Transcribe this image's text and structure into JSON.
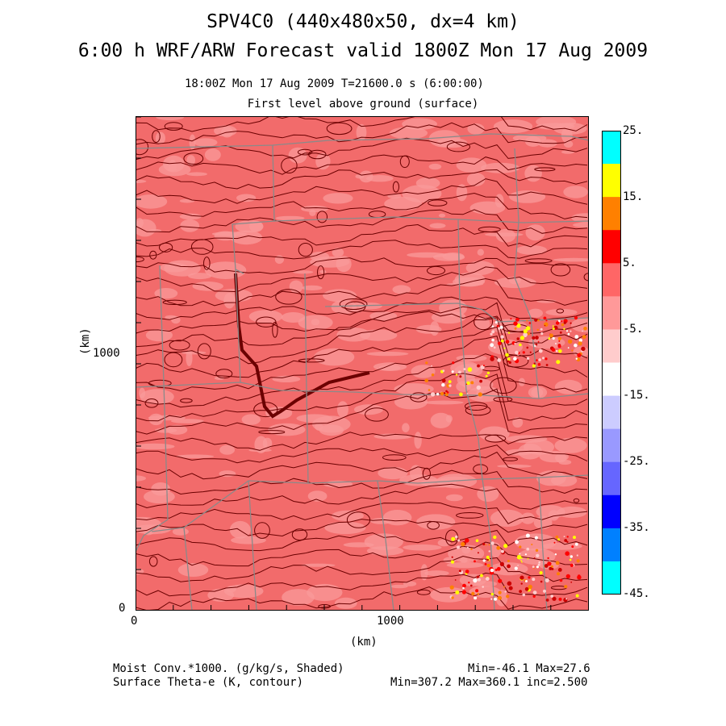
{
  "title": {
    "line1": "SPV4C0 (440x480x50, dx=4 km)",
    "line2": "6:00 h WRF/ARW Forecast valid 1800Z Mon 17 Aug 2009"
  },
  "subtitle": {
    "time_line": "18:00Z Mon 17 Aug 2009    T=21600.0 s (6:00:00)",
    "level_line": "First level above ground (surface)"
  },
  "axes": {
    "x_label": "(km)",
    "y_label": "(km)",
    "x_ticks": [
      "0",
      "1000"
    ],
    "y_ticks": [
      "0",
      "1000"
    ]
  },
  "colorbar": {
    "labels": [
      "25.",
      "15.",
      "5.",
      "-5.",
      "-15.",
      "-25.",
      "-35.",
      "-45."
    ],
    "colors": [
      "#00ffff",
      "#ffff00",
      "#ff8000",
      "#ff0000",
      "#ff6666",
      "#ff9999",
      "#ffcccc",
      "#ffffff",
      "#ccccff",
      "#9999ff",
      "#6666ff",
      "#0000ff",
      "#0080ff",
      "#00ffff"
    ]
  },
  "map_colors": {
    "base": "#f26b6b",
    "light": "#f99a9a",
    "contour": "#6b0000",
    "border": "#8a8a8a"
  },
  "footer": {
    "field1": "Moist Conv.*1000. (g/kg/s, Shaded)",
    "field2": "Surface Theta-e (K, contour)",
    "range1": "Min=-46.1 Max=27.6",
    "range2": "Min=307.2 Max=360.1 inc=2.500"
  }
}
